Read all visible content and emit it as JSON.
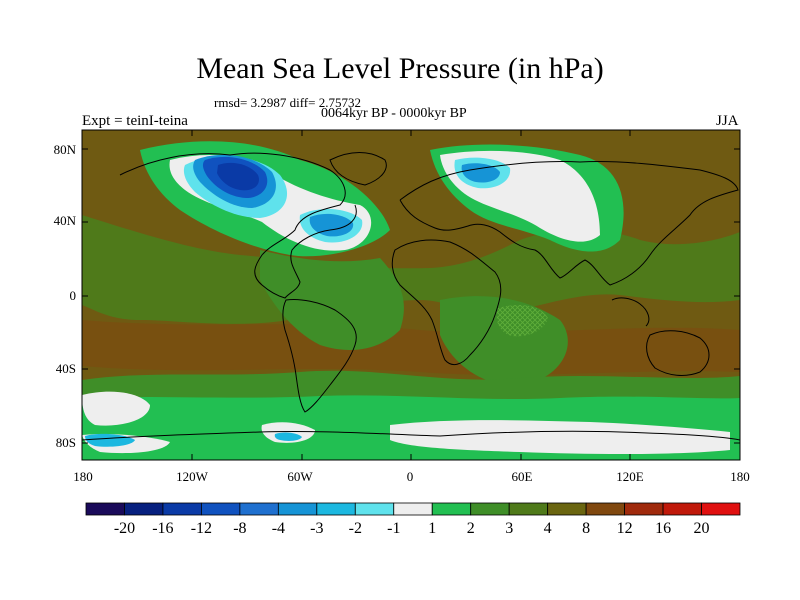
{
  "title": "Mean Sea Level Pressure (in hPa)",
  "stats": "rmsd= 3.2987 diff= 2.75732",
  "period": "0064kyr BP - 0000kyr BP",
  "experiment": "Expt = teinI-teina",
  "season": "JJA",
  "lat_labels": [
    "80N",
    "40N",
    "0",
    "40S",
    "80S"
  ],
  "lon_labels": [
    "180",
    "120W",
    "60W",
    "0",
    "60E",
    "120E",
    "180"
  ],
  "colorbar": {
    "labels": [
      "-20",
      "-16",
      "-12",
      "-8",
      "-4",
      "-3",
      "-2",
      "-1",
      "1",
      "2",
      "3",
      "4",
      "8",
      "12",
      "16",
      "20"
    ],
    "colors": [
      "#1a0a5a",
      "#07207f",
      "#0a3aa6",
      "#1052bf",
      "#1f70cf",
      "#1694d6",
      "#1cb8e0",
      "#5fe2ec",
      "#eeeeee",
      "#22bf52",
      "#3f8e28",
      "#4f7a1a",
      "#6a6510",
      "#80480f",
      "#a02a0c",
      "#c0190a",
      "#e01010"
    ]
  },
  "palette": {
    "background_field": "#6f5a12",
    "level_4": "#4f7a1a",
    "level_3": "#3f8e28",
    "level_2": "#22bf52",
    "level_1": "#eeeeee",
    "neg_1": "#5fe2ec",
    "neg_2": "#1cb8e0",
    "neg_3": "#1694d6",
    "neg_4": "#1f70cf",
    "neg_8": "#1052bf",
    "neg_12": "#0a3aa6",
    "pos_12": "#80480f",
    "coast": "#000000"
  }
}
